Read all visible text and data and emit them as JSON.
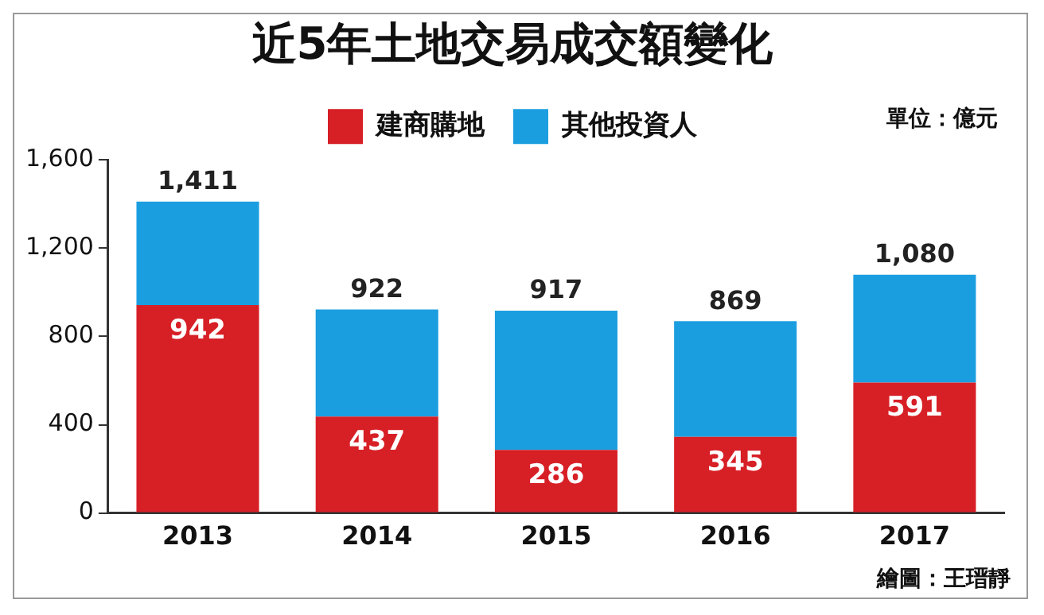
{
  "chart_data": {
    "type": "bar",
    "title": "近5年土地交易成交額變化",
    "categories": [
      "2013",
      "2014",
      "2015",
      "2016",
      "2017"
    ],
    "stacked": true,
    "series": [
      {
        "name": "建商購地",
        "color": "#d71f26",
        "values": [
          942,
          437,
          286,
          345,
          591
        ],
        "value_labels": [
          "942",
          "437",
          "286",
          "345",
          "591"
        ]
      },
      {
        "name": "其他投資人",
        "color": "#1b9ee0",
        "values": [
          469,
          485,
          631,
          524,
          489
        ]
      }
    ],
    "totals": [
      "1,411",
      "922",
      "917",
      "869",
      "1,080"
    ],
    "ylim": [
      0,
      1600
    ],
    "yticks": [
      0,
      {
        "value": 400,
        "label": "400"
      },
      {
        "value": 800,
        "label": "800"
      },
      {
        "value": 1200,
        "label": "1,200"
      },
      {
        "value": 1600,
        "label": "1,600"
      }
    ],
    "grid": false,
    "legend": "top",
    "annotations": [
      "單位：億元",
      "繪圖：王瑨靜"
    ]
  }
}
